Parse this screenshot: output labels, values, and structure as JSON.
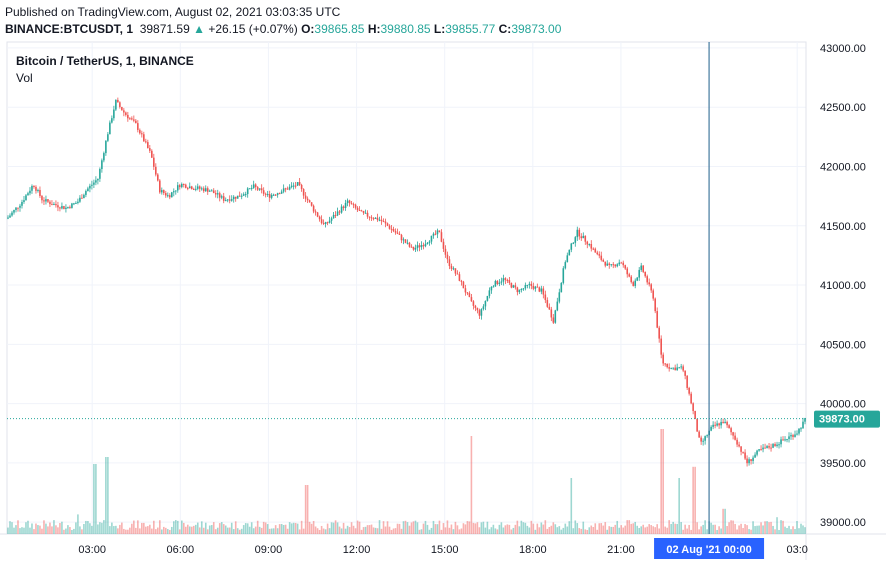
{
  "header": {
    "published": "Published on TradingView.com, August 02, 2021 03:03:35 UTC",
    "symbol_line": "BINANCE:BTCUSDT, 1",
    "last": "39871.59",
    "change_arrow": "▲",
    "change": "+26.15 (+0.07%)",
    "o_label": "O:",
    "o_val": "39865.85",
    "h_label": "H:",
    "h_val": "39880.85",
    "l_label": "L:",
    "l_val": "39855.77",
    "c_label": "C:",
    "c_val": "39873.00"
  },
  "legend": {
    "title": "Bitcoin / TetherUS, 1, BINANCE",
    "vol": "Vol"
  },
  "colors": {
    "up": "#26a69a",
    "down": "#ef5350",
    "axis_text": "#131722",
    "crosshair_bg": "#2962ff",
    "grid": "#f0f3fa"
  },
  "chart_data": {
    "type": "candlestick",
    "ylim": [
      38900,
      43050
    ],
    "y_ticks": [
      "43000.00",
      "42500.00",
      "42000.00",
      "41500.00",
      "41000.00",
      "40500.00",
      "40000.00",
      "39500.00",
      "39000.00"
    ],
    "y_tick_values": [
      43000,
      42500,
      42000,
      41500,
      41000,
      40500,
      40000,
      39500,
      39000
    ],
    "x_ticks": [
      "03:00",
      "06:00",
      "09:00",
      "12:00",
      "15:00",
      "18:00",
      "21:00",
      "03:0"
    ],
    "x_tick_hours": [
      3,
      6,
      9,
      12,
      15,
      18,
      21,
      27
    ],
    "x_range_hours": [
      0.1,
      27.3
    ],
    "last_price_label": "39873.00",
    "last_price": 39873,
    "crosshair_label": "02 Aug '21   00:00",
    "crosshair_hour": 24,
    "close_path": [
      [
        0.1,
        41560
      ],
      [
        0.6,
        41700
      ],
      [
        1.0,
        41850
      ],
      [
        1.3,
        41720
      ],
      [
        1.7,
        41680
      ],
      [
        2.1,
        41650
      ],
      [
        2.5,
        41700
      ],
      [
        2.8,
        41800
      ],
      [
        3.2,
        41900
      ],
      [
        3.5,
        42250
      ],
      [
        3.8,
        42550
      ],
      [
        4.1,
        42450
      ],
      [
        4.5,
        42350
      ],
      [
        5.0,
        42100
      ],
      [
        5.3,
        41800
      ],
      [
        5.6,
        41750
      ],
      [
        6.0,
        41850
      ],
      [
        6.5,
        41820
      ],
      [
        7.0,
        41800
      ],
      [
        7.5,
        41720
      ],
      [
        8.0,
        41750
      ],
      [
        8.5,
        41830
      ],
      [
        9.0,
        41750
      ],
      [
        9.5,
        41800
      ],
      [
        10.0,
        41850
      ],
      [
        10.5,
        41650
      ],
      [
        10.9,
        41500
      ],
      [
        11.3,
        41600
      ],
      [
        11.7,
        41700
      ],
      [
        12.2,
        41600
      ],
      [
        12.8,
        41550
      ],
      [
        13.3,
        41450
      ],
      [
        13.9,
        41300
      ],
      [
        14.3,
        41350
      ],
      [
        14.8,
        41450
      ],
      [
        15.1,
        41200
      ],
      [
        15.5,
        41050
      ],
      [
        15.9,
        40850
      ],
      [
        16.2,
        40750
      ],
      [
        16.6,
        41000
      ],
      [
        17.0,
        41050
      ],
      [
        17.5,
        40950
      ],
      [
        17.9,
        41000
      ],
      [
        18.3,
        40950
      ],
      [
        18.7,
        40700
      ],
      [
        19.1,
        41200
      ],
      [
        19.5,
        41450
      ],
      [
        19.9,
        41350
      ],
      [
        20.2,
        41250
      ],
      [
        20.6,
        41150
      ],
      [
        21.0,
        41200
      ],
      [
        21.4,
        41000
      ],
      [
        21.7,
        41150
      ],
      [
        22.1,
        40900
      ],
      [
        22.4,
        40350
      ],
      [
        22.7,
        40300
      ],
      [
        23.1,
        40300
      ],
      [
        23.4,
        40000
      ],
      [
        23.7,
        39650
      ],
      [
        24.1,
        39800
      ],
      [
        24.5,
        39850
      ],
      [
        24.9,
        39700
      ],
      [
        25.3,
        39500
      ],
      [
        25.7,
        39600
      ],
      [
        26.2,
        39650
      ],
      [
        26.6,
        39700
      ],
      [
        27.0,
        39760
      ],
      [
        27.3,
        39873
      ]
    ],
    "volume_spikes": [
      [
        2.5,
        0.14
      ],
      [
        3.1,
        0.5
      ],
      [
        3.5,
        0.55
      ],
      [
        10.3,
        0.35
      ],
      [
        15.9,
        0.7
      ],
      [
        19.3,
        0.4
      ],
      [
        22.4,
        0.75
      ],
      [
        23.0,
        0.4
      ],
      [
        23.5,
        0.48
      ],
      [
        24.5,
        0.18
      ],
      [
        26.3,
        0.12
      ]
    ]
  }
}
